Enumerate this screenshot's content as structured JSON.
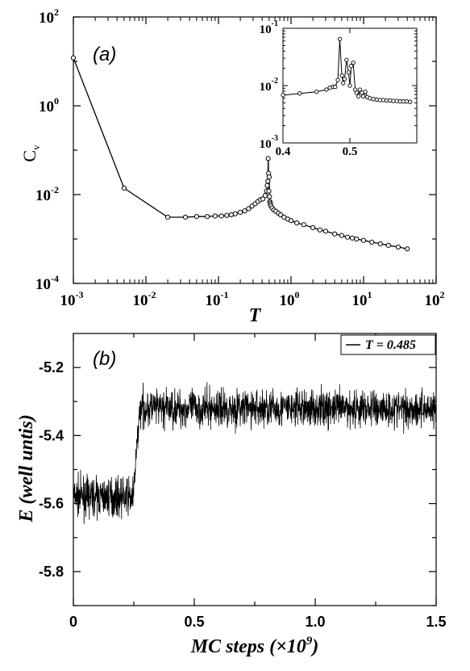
{
  "chart_data": [
    {
      "panel": "a",
      "type": "line",
      "panel_label": "(a)",
      "xlabel": "T",
      "ylabel": "C",
      "ylabel_sub": "v",
      "x_scale": "log",
      "y_scale": "log",
      "xlim": [
        0.001,
        100
      ],
      "ylim": [
        0.0001,
        100
      ],
      "x_ticks": [
        {
          "base": "10",
          "exp": "-3"
        },
        {
          "base": "10",
          "exp": "-2"
        },
        {
          "base": "10",
          "exp": "-1"
        },
        {
          "base": "10",
          "exp": "0"
        },
        {
          "base": "10",
          "exp": "1"
        },
        {
          "base": "10",
          "exp": "2"
        }
      ],
      "y_ticks": [
        {
          "base": "10",
          "exp": "-4"
        },
        {
          "base": "10",
          "exp": "-2"
        },
        {
          "base": "10",
          "exp": "0"
        },
        {
          "base": "10",
          "exp": "2"
        }
      ],
      "markers": "open circles",
      "series": [
        {
          "x": [
            0.001,
            0.005,
            0.02,
            0.035,
            0.05,
            0.07,
            0.09,
            0.11,
            0.13,
            0.15,
            0.17,
            0.2,
            0.23,
            0.26,
            0.29,
            0.32,
            0.35,
            0.38,
            0.41,
            0.44,
            0.46,
            0.47,
            0.48,
            0.485,
            0.49,
            0.495,
            0.5,
            0.505,
            0.51,
            0.515,
            0.52,
            0.53,
            0.55,
            0.58,
            0.62,
            0.67,
            0.72,
            0.8,
            0.9,
            1.0,
            1.2,
            1.5,
            2.0,
            2.5,
            3.0,
            4.0,
            5.0,
            6.0,
            7.0,
            8.0,
            10.0,
            13.0,
            17.0,
            22.0,
            30.0,
            40.0
          ],
          "y": [
            12.0,
            0.014,
            0.0031,
            0.0031,
            0.0032,
            0.0032,
            0.0033,
            0.0033,
            0.0034,
            0.0035,
            0.0037,
            0.004,
            0.0043,
            0.0048,
            0.0055,
            0.0062,
            0.007,
            0.0077,
            0.008,
            0.0095,
            0.012,
            0.016,
            0.02,
            0.065,
            0.03,
            0.012,
            0.025,
            0.009,
            0.007,
            0.0065,
            0.006,
            0.0055,
            0.005,
            0.0045,
            0.0042,
            0.0038,
            0.0035,
            0.0031,
            0.0028,
            0.0026,
            0.0023,
            0.0021,
            0.0018,
            0.0016,
            0.0015,
            0.0013,
            0.0012,
            0.0011,
            0.00105,
            0.001,
            0.00093,
            0.00085,
            0.00078,
            0.00072,
            0.00066,
            0.0006
          ]
        }
      ]
    },
    {
      "panel": "a-inset",
      "type": "line",
      "x_scale": "linear",
      "y_scale": "log",
      "xlim": [
        0.4,
        0.6
      ],
      "ylim": [
        0.001,
        0.1
      ],
      "x_ticks": [
        "0.4",
        "0.5"
      ],
      "y_ticks": [
        {
          "base": "10",
          "exp": "-3"
        },
        {
          "base": "10",
          "exp": "-2"
        },
        {
          "base": "10",
          "exp": "-1"
        }
      ],
      "markers": "open circles",
      "series": [
        {
          "x": [
            0.4,
            0.425,
            0.45,
            0.465,
            0.47,
            0.475,
            0.478,
            0.482,
            0.485,
            0.488,
            0.49,
            0.492,
            0.495,
            0.498,
            0.5,
            0.502,
            0.505,
            0.508,
            0.51,
            0.513,
            0.515,
            0.518,
            0.52,
            0.523,
            0.526,
            0.53,
            0.535,
            0.54,
            0.545,
            0.55,
            0.555,
            0.56,
            0.565,
            0.57,
            0.575,
            0.58,
            0.585,
            0.59
          ],
          "y": [
            0.0068,
            0.0073,
            0.0078,
            0.0085,
            0.0092,
            0.0095,
            0.0095,
            0.0125,
            0.065,
            0.015,
            0.011,
            0.013,
            0.028,
            0.017,
            0.01,
            0.022,
            0.025,
            0.0085,
            0.0075,
            0.0065,
            0.0085,
            0.0075,
            0.0065,
            0.0078,
            0.0063,
            0.006,
            0.0058,
            0.0057,
            0.0056,
            0.0056,
            0.0055,
            0.0055,
            0.0054,
            0.0054,
            0.0053,
            0.0053,
            0.0053,
            0.0052
          ]
        }
      ]
    },
    {
      "panel": "b",
      "type": "line",
      "panel_label": "(b)",
      "xlabel": "MC steps (×10",
      "xlabel_exp": "9",
      "xlabel_close": ")",
      "ylabel": "E (well untis)",
      "xlim": [
        0,
        1.5
      ],
      "ylim": [
        -5.9,
        -5.1
      ],
      "x_ticks": [
        "0",
        "0.5",
        "1.0",
        "1.5"
      ],
      "y_ticks": [
        "-5.8",
        "-5.6",
        "-5.4",
        "-5.2"
      ],
      "y_tick_values": [
        -5.8,
        -5.6,
        -5.4,
        -5.2
      ],
      "x_tick_values": [
        0,
        0.5,
        1.0,
        1.5
      ],
      "legend": {
        "label": "T = 0.485",
        "placement": "top-right"
      },
      "series": [
        {
          "name": "T = 0.485",
          "segments": [
            {
              "x_start": 0,
              "x_end": 0.25,
              "mean": -5.58,
              "noise": 0.05
            },
            {
              "x_start": 0.25,
              "x_end": 0.275,
              "mean_start": -5.55,
              "mean_end": -5.32,
              "noise": 0.04
            },
            {
              "x_start": 0.275,
              "x_end": 1.5,
              "mean": -5.32,
              "noise": 0.05
            }
          ]
        }
      ]
    }
  ]
}
